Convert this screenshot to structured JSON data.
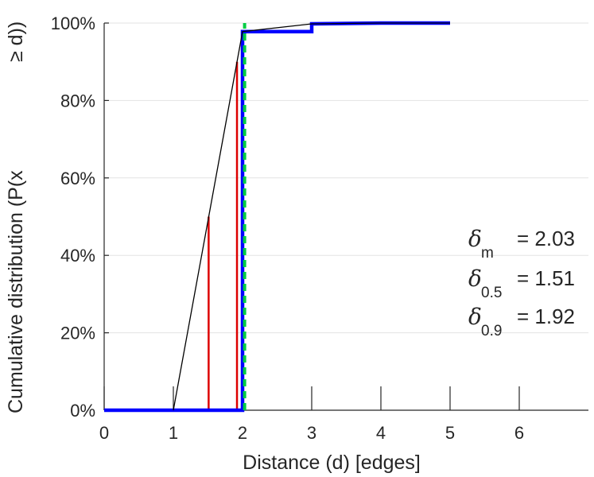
{
  "chart_data": {
    "type": "line",
    "title": "",
    "xlabel": "Distance (d) [edges]",
    "ylabel": "Cumulative distribution (P(x ≥ d))",
    "ylabel_parts": [
      "Cumulative distribution (P(x",
      "≥ d))"
    ],
    "xlim": [
      0,
      7
    ],
    "ylim": [
      0,
      100
    ],
    "x_ticks": [
      0,
      1,
      2,
      3,
      4,
      5,
      6
    ],
    "x_tick_labels": [
      "0",
      "1",
      "2",
      "3",
      "4",
      "5",
      "6"
    ],
    "y_ticks": [
      0,
      20,
      40,
      60,
      80,
      100
    ],
    "y_tick_labels": [
      "0%",
      "20%",
      "40%",
      "60%",
      "80%",
      "100%"
    ],
    "grid": "horizontal",
    "series": [
      {
        "style": "step",
        "color": "#0000ff",
        "x": [
          0,
          2,
          2,
          3,
          3,
          4,
          5
        ],
        "y": [
          0,
          0,
          97.8,
          97.8,
          99.8,
          100,
          100
        ]
      },
      {
        "style": "line",
        "color": "#000000",
        "x": [
          1,
          2,
          3,
          4,
          5
        ],
        "y": [
          0,
          97.8,
          99.8,
          100,
          100
        ]
      }
    ],
    "vertical_markers": [
      {
        "style": "solid",
        "color": "#dd0000",
        "x": 1.51,
        "y_top": 50
      },
      {
        "style": "solid",
        "color": "#dd0000",
        "x": 1.92,
        "y_top": 90
      },
      {
        "style": "dashed",
        "color": "#00cc44",
        "x": 2.03,
        "y_top": 100
      }
    ],
    "annotations": [
      {
        "symbol": "δ",
        "subscript": "m",
        "text": "= 2.03"
      },
      {
        "symbol": "δ",
        "subscript": "0.5",
        "text": "= 1.51"
      },
      {
        "symbol": "δ",
        "subscript": "0.9",
        "text": "= 1.92"
      }
    ]
  }
}
